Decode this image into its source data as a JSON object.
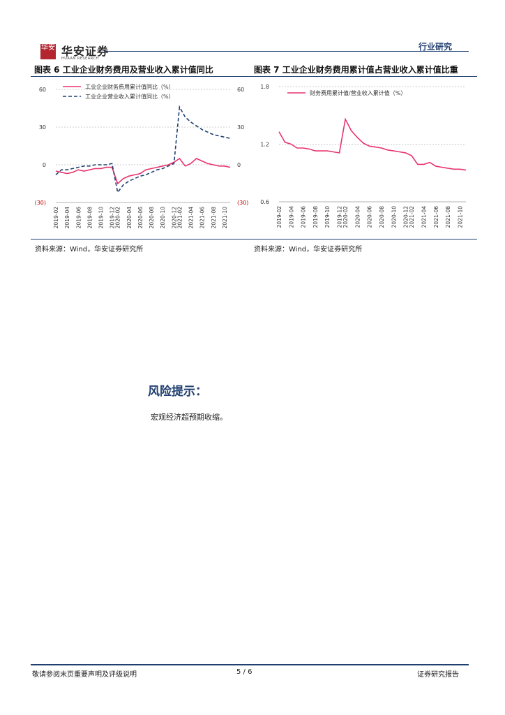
{
  "header": {
    "logo_glyph": "华安",
    "logo_cn": "华安证券",
    "logo_en": "HUAAN RESEARCH",
    "category": "行业研究"
  },
  "figure6": {
    "caption": "图表 6 工业企业财务费用及营业收入累计值同比",
    "source": "资料来源：Wind，华安证券研究所",
    "chart_data": {
      "type": "line",
      "title": "",
      "x": [
        "2019-02",
        "2019-03",
        "2019-04",
        "2019-05",
        "2019-06",
        "2019-07",
        "2019-08",
        "2019-09",
        "2019-10",
        "2019-11",
        "2019-12",
        "2020-02",
        "2020-03",
        "2020-04",
        "2020-05",
        "2020-06",
        "2020-07",
        "2020-08",
        "2020-09",
        "2020-10",
        "2020-11",
        "2020-12",
        "2021-02",
        "2021-03",
        "2021-04",
        "2021-05",
        "2021-06",
        "2021-07",
        "2021-08",
        "2021-09",
        "2021-10",
        "2021-11"
      ],
      "x_tick_labels": [
        "2019-02",
        "2019-04",
        "2019-06",
        "2019-08",
        "2019-10",
        "2019-12",
        "2020-02",
        "2020-04",
        "2020-06",
        "2020-08",
        "2020-10",
        "2020-12",
        "2021-02",
        "2021-04",
        "2021-06",
        "2021-08",
        "2021-10"
      ],
      "ylim": [
        -30,
        60
      ],
      "y_ticks": [
        60,
        30,
        0,
        -30
      ],
      "y_tick_labels": [
        "60",
        "30",
        "0",
        "(30)"
      ],
      "right_y_tick_labels": [
        "60",
        "30",
        "0",
        "(30)"
      ],
      "grid": true,
      "legend_position": "top-left",
      "series": [
        {
          "name": "工业企业财务费用累计值同比（%）",
          "color": "#e8336d",
          "style": "solid",
          "values": [
            -5,
            -6,
            -7,
            -6,
            -4,
            -5,
            -4,
            -3,
            -3,
            -2,
            -2,
            -15,
            -11,
            -9,
            -8,
            -7,
            -4,
            -3,
            -2,
            -1,
            0,
            2,
            5,
            -1,
            1,
            5,
            3,
            1,
            0,
            -1,
            -1,
            -2
          ]
        },
        {
          "name": "工业企业营业收入累计值同比（%）",
          "color": "#1f3f70",
          "style": "dashed",
          "values": [
            -8,
            -4,
            -4,
            -3,
            -2,
            -1,
            -1,
            0,
            0,
            0,
            1,
            -22,
            -16,
            -13,
            -11,
            -9,
            -8,
            -6,
            -4,
            -3,
            -1,
            1,
            46,
            38,
            34,
            31,
            28,
            26,
            24,
            23,
            22,
            21
          ]
        }
      ]
    }
  },
  "figure7": {
    "caption": "图表 7 工业企业财务费用累计值占营业收入累计值比重",
    "source": "资料来源：Wind，华安证券研究所",
    "chart_data": {
      "type": "line",
      "title": "",
      "x": [
        "2019-02",
        "2019-03",
        "2019-04",
        "2019-05",
        "2019-06",
        "2019-07",
        "2019-08",
        "2019-09",
        "2019-10",
        "2019-11",
        "2019-12",
        "2020-02",
        "2020-03",
        "2020-04",
        "2020-05",
        "2020-06",
        "2020-07",
        "2020-08",
        "2020-09",
        "2020-10",
        "2020-11",
        "2020-12",
        "2021-02",
        "2021-03",
        "2021-04",
        "2021-05",
        "2021-06",
        "2021-07",
        "2021-08",
        "2021-09",
        "2021-10",
        "2021-11"
      ],
      "x_tick_labels": [
        "2019-02",
        "2019-04",
        "2019-06",
        "2019-08",
        "2019-10",
        "2019-12",
        "2020-02",
        "2020-04",
        "2020-06",
        "2020-08",
        "2020-10",
        "2020-12",
        "2021-02",
        "2021-04",
        "2021-06",
        "2021-08",
        "2021-10"
      ],
      "ylim": [
        0.6,
        1.8
      ],
      "y_ticks": [
        1.8,
        1.2,
        0.6
      ],
      "y_tick_labels": [
        "1.8",
        "1.2",
        "0.6"
      ],
      "grid": true,
      "legend_position": "top-left",
      "series": [
        {
          "name": "财务费用累计值/营业收入累计值（%）",
          "color": "#e8336d",
          "style": "solid",
          "values": [
            1.33,
            1.22,
            1.2,
            1.16,
            1.16,
            1.15,
            1.13,
            1.13,
            1.13,
            1.12,
            1.11,
            1.46,
            1.34,
            1.27,
            1.21,
            1.18,
            1.17,
            1.16,
            1.14,
            1.13,
            1.12,
            1.11,
            1.08,
            0.99,
            0.99,
            1.01,
            0.97,
            0.96,
            0.95,
            0.94,
            0.94,
            0.93
          ]
        }
      ]
    }
  },
  "risk": {
    "title": "风险提示：",
    "body": "宏观经济超预期收缩。"
  },
  "footer": {
    "left": "敬请参阅末页重要声明及评级说明",
    "page": "5 / 6",
    "right": "证券研究报告"
  }
}
